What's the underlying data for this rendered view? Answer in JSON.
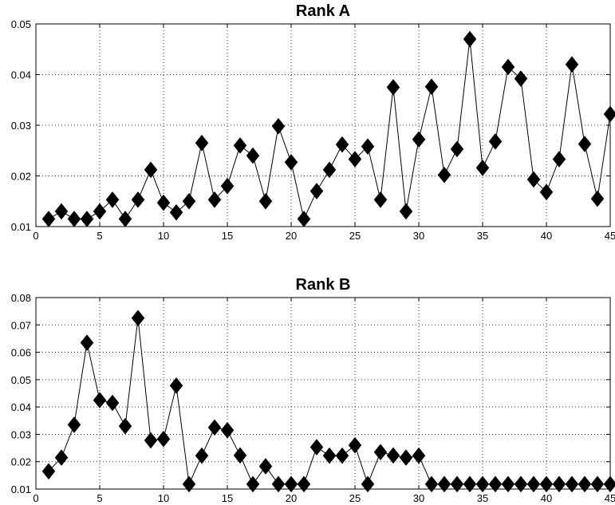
{
  "chart_data": [
    {
      "type": "line",
      "title": "Rank A",
      "xlabel": "",
      "ylabel": "",
      "xlim": [
        0,
        45
      ],
      "ylim": [
        0.01,
        0.05
      ],
      "xticks": [
        0,
        5,
        10,
        15,
        20,
        25,
        30,
        35,
        40,
        45
      ],
      "xtick_labels": [
        "0",
        "5",
        "10",
        "15",
        "20",
        "25",
        "30",
        "35",
        "40",
        "45"
      ],
      "yticks": [
        0.01,
        0.02,
        0.03,
        0.04,
        0.05
      ],
      "ytick_labels": [
        "0.01",
        "0.02",
        "0.03",
        "0.04",
        "0.05"
      ],
      "grid": true,
      "marker": "diamond",
      "x": [
        1,
        2,
        3,
        4,
        5,
        6,
        7,
        8,
        9,
        10,
        11,
        12,
        13,
        14,
        15,
        16,
        17,
        18,
        19,
        20,
        21,
        22,
        23,
        24,
        25,
        26,
        27,
        28,
        29,
        30,
        31,
        32,
        33,
        34,
        35,
        36,
        37,
        38,
        39,
        40,
        41,
        42,
        43,
        44,
        45
      ],
      "values": [
        0.0115,
        0.013,
        0.0115,
        0.0115,
        0.013,
        0.0153,
        0.0115,
        0.0153,
        0.0212,
        0.0147,
        0.0128,
        0.015,
        0.0265,
        0.0153,
        0.018,
        0.026,
        0.024,
        0.015,
        0.0298,
        0.0227,
        0.0115,
        0.017,
        0.0212,
        0.0262,
        0.0233,
        0.0258,
        0.0153,
        0.0375,
        0.013,
        0.0272,
        0.0376,
        0.0202,
        0.0253,
        0.047,
        0.0216,
        0.0268,
        0.0415,
        0.0392,
        0.0193,
        0.0168,
        0.0233,
        0.042,
        0.0263,
        0.0155,
        0.0322
      ]
    },
    {
      "type": "line",
      "title": "Rank B",
      "xlabel": "",
      "ylabel": "",
      "xlim": [
        0,
        45
      ],
      "ylim": [
        0.01,
        0.08
      ],
      "xticks": [
        0,
        5,
        10,
        15,
        20,
        25,
        30,
        35,
        40,
        45
      ],
      "xtick_labels": [
        "0",
        "5",
        "10",
        "15",
        "20",
        "25",
        "30",
        "35",
        "40",
        "45"
      ],
      "yticks": [
        0.01,
        0.02,
        0.03,
        0.04,
        0.05,
        0.06,
        0.07,
        0.08
      ],
      "ytick_labels": [
        "0.01",
        "0.02",
        "0.03",
        "0.04",
        "0.05",
        "0.06",
        "0.07",
        "0.08"
      ],
      "grid": true,
      "marker": "diamond",
      "x": [
        1,
        2,
        3,
        4,
        5,
        6,
        7,
        8,
        9,
        10,
        11,
        12,
        13,
        14,
        15,
        16,
        17,
        18,
        19,
        20,
        21,
        22,
        23,
        24,
        25,
        26,
        27,
        28,
        29,
        30,
        31,
        32,
        33,
        34,
        35,
        36,
        37,
        38,
        39,
        40,
        41,
        42,
        43,
        44,
        45
      ],
      "values": [
        0.0165,
        0.0215,
        0.0335,
        0.0635,
        0.0425,
        0.0415,
        0.033,
        0.0725,
        0.0278,
        0.0283,
        0.0478,
        0.0118,
        0.0222,
        0.0325,
        0.0315,
        0.0223,
        0.0118,
        0.0183,
        0.0118,
        0.0118,
        0.0118,
        0.0253,
        0.0222,
        0.0222,
        0.026,
        0.0118,
        0.0235,
        0.0223,
        0.0215,
        0.0222,
        0.0118,
        0.0118,
        0.0118,
        0.0118,
        0.0118,
        0.0118,
        0.0118,
        0.0118,
        0.0118,
        0.0118,
        0.0118,
        0.0118,
        0.0118,
        0.0118,
        0.0118
      ]
    }
  ]
}
